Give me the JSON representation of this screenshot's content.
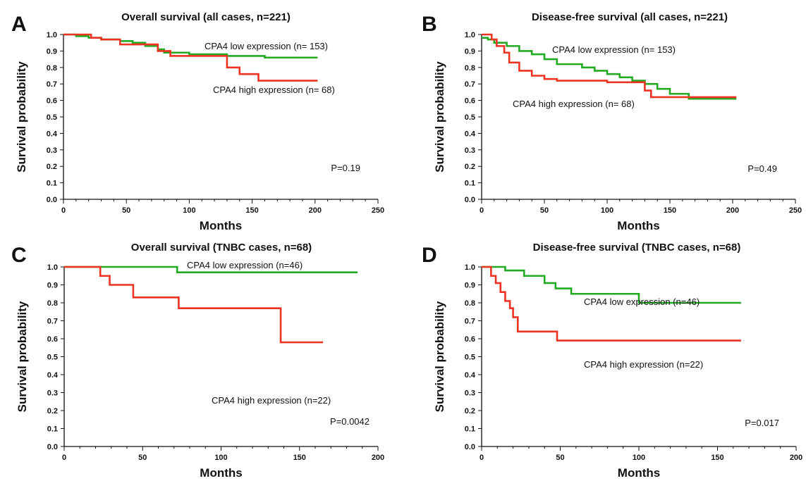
{
  "chart_data": [
    {
      "panel": "A",
      "type": "line",
      "step": true,
      "title": "Overall survival (all cases, n=221)",
      "xlabel": "Months",
      "ylabel": "Survival probability",
      "xlim": [
        0,
        250
      ],
      "ylim": [
        0,
        1
      ],
      "xticks": [
        "0",
        "50",
        "100",
        "150",
        "200",
        "250"
      ],
      "yticks": [
        "0.0",
        "0.1",
        "0.2",
        "0.3",
        "0.4",
        "0.5",
        "0.6",
        "0.7",
        "0.8",
        "0.9",
        "1.0"
      ],
      "p_value": "P=0.19",
      "series": [
        {
          "name": "CPA4 low expression (n= 153)",
          "color": "#22aa22",
          "x": [
            0,
            10,
            20,
            30,
            45,
            55,
            65,
            75,
            80,
            100,
            130,
            150,
            160,
            202
          ],
          "y": [
            1.0,
            0.99,
            0.98,
            0.97,
            0.96,
            0.95,
            0.93,
            0.91,
            0.89,
            0.88,
            0.87,
            0.87,
            0.86,
            0.86
          ]
        },
        {
          "name": "CPA4 high expression (n= 68)",
          "color": "#ee3322",
          "x": [
            0,
            18,
            22,
            30,
            45,
            60,
            75,
            85,
            125,
            130,
            140,
            155,
            202
          ],
          "y": [
            1.0,
            1.0,
            0.98,
            0.97,
            0.94,
            0.94,
            0.9,
            0.87,
            0.87,
            0.8,
            0.76,
            0.72,
            0.72
          ]
        }
      ]
    },
    {
      "panel": "B",
      "type": "line",
      "step": true,
      "title": "Disease-free survival (all cases, n=221)",
      "xlabel": "Months",
      "ylabel": "Survival probability",
      "xlim": [
        0,
        250
      ],
      "ylim": [
        0,
        1
      ],
      "xticks": [
        "0",
        "50",
        "100",
        "150",
        "200",
        "250"
      ],
      "yticks": [
        "0.0",
        "0.1",
        "0.2",
        "0.3",
        "0.4",
        "0.5",
        "0.6",
        "0.7",
        "0.8",
        "0.9",
        "1.0"
      ],
      "p_value": "P=0.49",
      "series": [
        {
          "name": "CPA4 low expression (n= 153)",
          "color": "#22aa22",
          "x": [
            0,
            5,
            10,
            20,
            30,
            40,
            50,
            60,
            80,
            90,
            100,
            110,
            120,
            130,
            140,
            150,
            165,
            203
          ],
          "y": [
            0.98,
            0.97,
            0.95,
            0.93,
            0.9,
            0.88,
            0.85,
            0.82,
            0.8,
            0.78,
            0.76,
            0.74,
            0.72,
            0.7,
            0.67,
            0.64,
            0.61,
            0.61
          ]
        },
        {
          "name": "CPA4 high expression (n= 68)",
          "color": "#ee3322",
          "x": [
            0,
            8,
            12,
            18,
            22,
            30,
            40,
            50,
            60,
            80,
            100,
            125,
            130,
            135,
            165,
            203
          ],
          "y": [
            1.0,
            0.97,
            0.93,
            0.89,
            0.83,
            0.78,
            0.75,
            0.73,
            0.72,
            0.72,
            0.71,
            0.71,
            0.66,
            0.62,
            0.62,
            0.62
          ]
        }
      ]
    },
    {
      "panel": "C",
      "type": "line",
      "step": true,
      "title": "Overall survival (TNBC cases, n=68)",
      "xlabel": "Months",
      "ylabel": "Survival probability",
      "xlim": [
        0,
        200
      ],
      "ylim": [
        0,
        1
      ],
      "xticks": [
        "0",
        "50",
        "100",
        "150",
        "200"
      ],
      "yticks": [
        "0.0",
        "0.1",
        "0.2",
        "0.3",
        "0.4",
        "0.5",
        "0.6",
        "0.7",
        "0.8",
        "0.9",
        "1.0"
      ],
      "p_value": "P=0.0042",
      "series": [
        {
          "name": "CPA4 low expression (n=46)",
          "color": "#22aa22",
          "x": [
            0,
            72,
            187
          ],
          "y": [
            1.0,
            0.97,
            0.97
          ]
        },
        {
          "name": "CPA4 high expression (n=22)",
          "color": "#ee3322",
          "x": [
            0,
            23,
            29,
            44,
            73,
            138,
            165
          ],
          "y": [
            1.0,
            0.95,
            0.9,
            0.83,
            0.77,
            0.58,
            0.58
          ]
        }
      ]
    },
    {
      "panel": "D",
      "type": "line",
      "step": true,
      "title": "Disease-free survival (TNBC cases, n=68)",
      "xlabel": "Months",
      "ylabel": "Survival probability",
      "xlim": [
        0,
        200
      ],
      "ylim": [
        0,
        1
      ],
      "xticks": [
        "0",
        "50",
        "100",
        "150",
        "200"
      ],
      "yticks": [
        "0.0",
        "0.1",
        "0.2",
        "0.3",
        "0.4",
        "0.5",
        "0.6",
        "0.7",
        "0.8",
        "0.9",
        "1.0"
      ],
      "p_value": "P=0.017",
      "series": [
        {
          "name": "CPA4 low expression (n=46)",
          "color": "#22aa22",
          "x": [
            0,
            15,
            27,
            40,
            47,
            57,
            100,
            165
          ],
          "y": [
            1.0,
            0.98,
            0.95,
            0.91,
            0.88,
            0.85,
            0.8,
            0.8
          ]
        },
        {
          "name": "CPA4 high expression (n=22)",
          "color": "#ee3322",
          "x": [
            0,
            6,
            9,
            12,
            15,
            18,
            20,
            23,
            48,
            165
          ],
          "y": [
            1.0,
            0.95,
            0.91,
            0.86,
            0.81,
            0.77,
            0.72,
            0.64,
            0.59,
            0.59
          ]
        }
      ]
    }
  ]
}
